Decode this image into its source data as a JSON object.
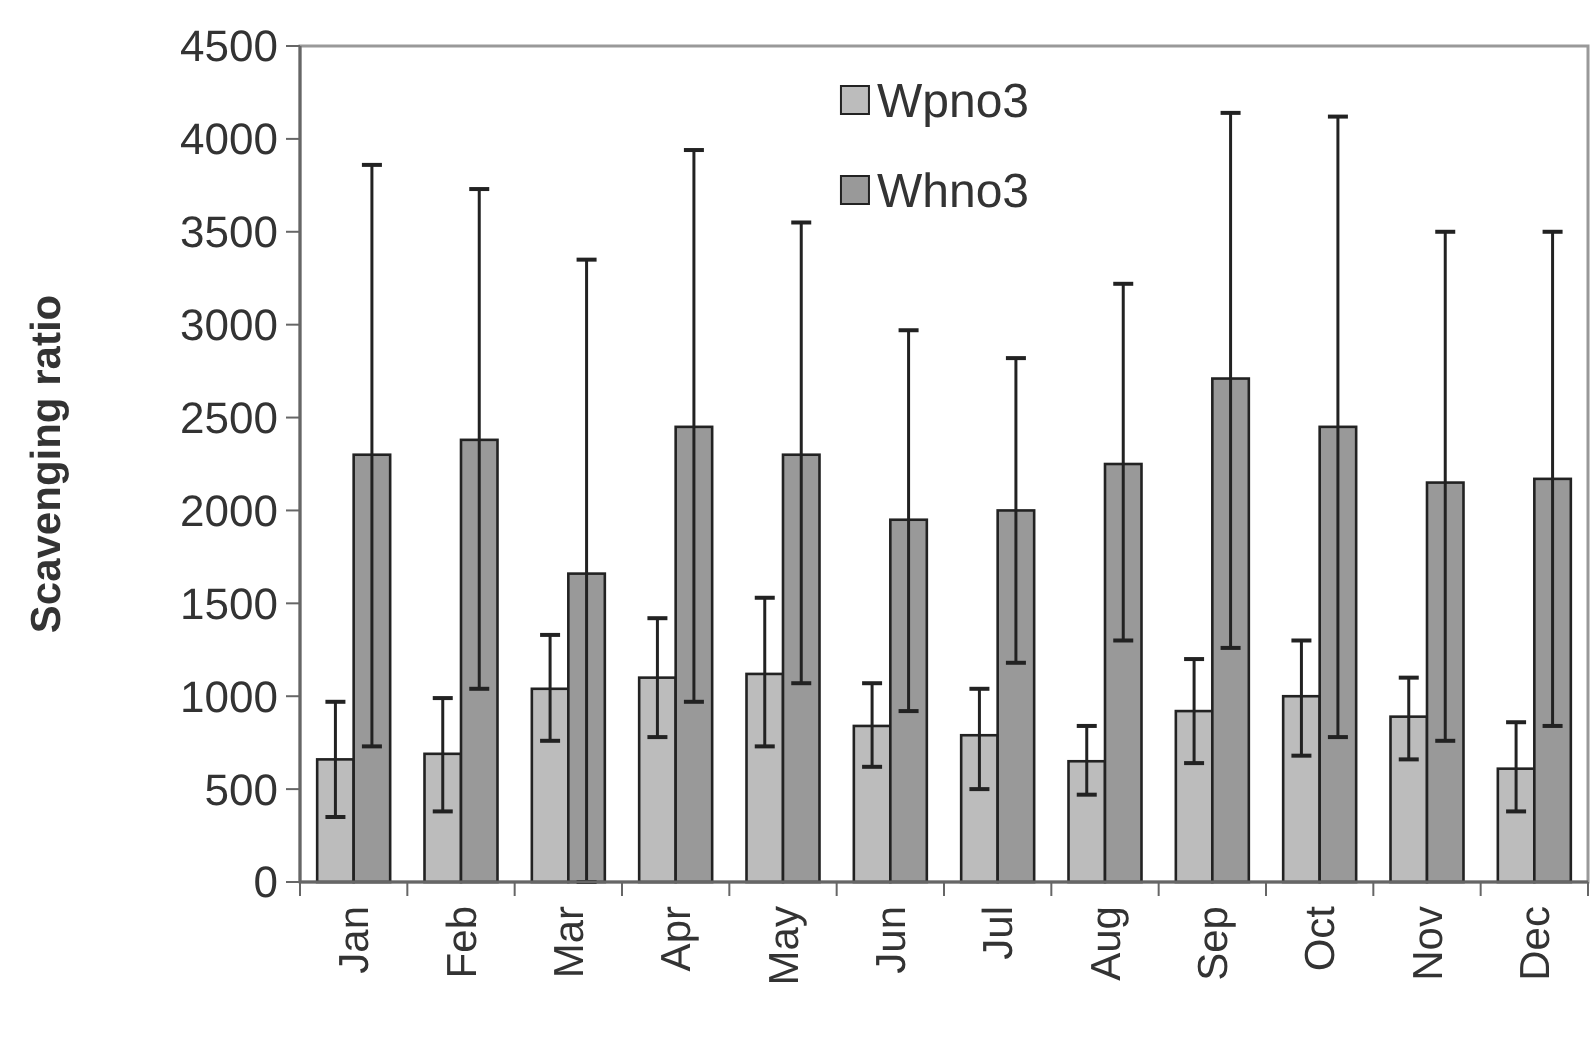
{
  "chart_data": {
    "type": "bar",
    "ylabel": "Scavenging ratio",
    "categories": [
      "Jan",
      "Feb",
      "Mar",
      "Apr",
      "May",
      "Jun",
      "Jul",
      "Aug",
      "Sep",
      "Oct",
      "Nov",
      "Dec"
    ],
    "series": [
      {
        "name": "Wpno3",
        "color": "#bcbcbc",
        "values": [
          660,
          690,
          1040,
          1100,
          1120,
          840,
          790,
          650,
          920,
          1000,
          890,
          610
        ],
        "errors": [
          [
            350,
            970
          ],
          [
            380,
            990
          ],
          [
            760,
            1330
          ],
          [
            780,
            1420
          ],
          [
            730,
            1530
          ],
          [
            620,
            1070
          ],
          [
            500,
            1040
          ],
          [
            470,
            840
          ],
          [
            640,
            1200
          ],
          [
            680,
            1300
          ],
          [
            660,
            1100
          ],
          [
            380,
            860
          ]
        ]
      },
      {
        "name": "Whno3",
        "color": "#999999",
        "values": [
          2300,
          2380,
          1660,
          2450,
          2300,
          1950,
          2000,
          2250,
          2710,
          2450,
          2150,
          2170
        ],
        "errors": [
          [
            730,
            3860
          ],
          [
            1040,
            3730
          ],
          [
            0,
            3350
          ],
          [
            970,
            3940
          ],
          [
            1070,
            3550
          ],
          [
            920,
            2970
          ],
          [
            1180,
            2820
          ],
          [
            1300,
            3220
          ],
          [
            1260,
            4140
          ],
          [
            780,
            4120
          ],
          [
            760,
            3500
          ],
          [
            840,
            3500
          ]
        ]
      }
    ],
    "ylim": [
      0,
      4500
    ],
    "yticks": [
      0,
      500,
      1000,
      1500,
      2000,
      2500,
      3000,
      3500,
      4000,
      4500
    ],
    "legend": "top"
  }
}
